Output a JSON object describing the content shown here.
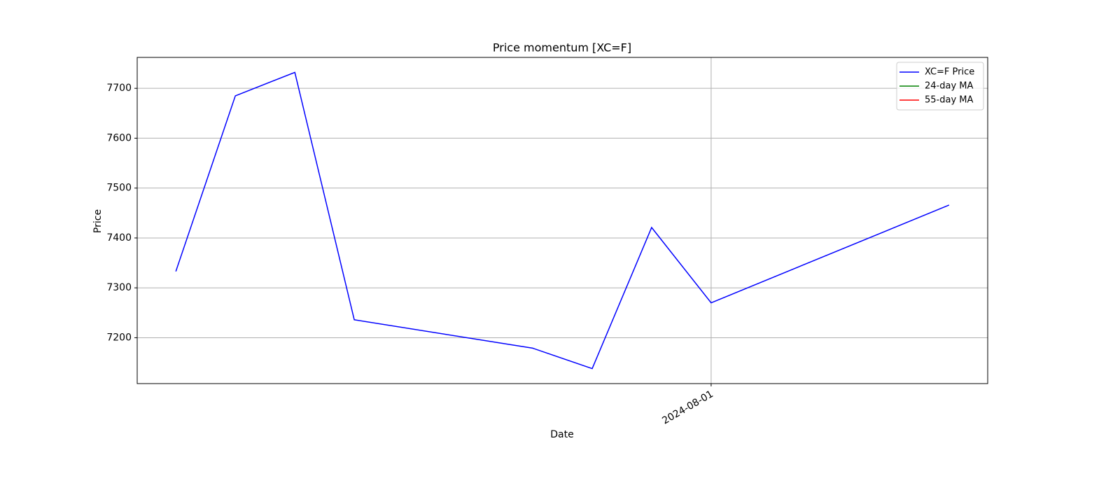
{
  "chart_data": {
    "type": "line",
    "title": "Price momentum [XC=F]",
    "xlabel": "Date",
    "ylabel": "Price",
    "x": [
      "2024-07-23",
      "2024-07-24",
      "2024-07-25",
      "2024-07-26",
      "2024-07-29",
      "2024-07-30",
      "2024-07-31",
      "2024-08-01",
      "2024-08-05"
    ],
    "series": [
      {
        "name": "XC=F Price",
        "color": "#0000ff",
        "values": [
          7333,
          7685,
          7732,
          7236,
          7179,
          7138,
          7421,
          7270,
          7466
        ]
      },
      {
        "name": "24-day MA",
        "color": "#008000",
        "values": [
          null,
          null,
          null,
          null,
          null,
          null,
          null,
          null,
          null
        ]
      },
      {
        "name": "55-day MA",
        "color": "#ff0000",
        "values": [
          null,
          null,
          null,
          null,
          null,
          null,
          null,
          null,
          null
        ]
      }
    ],
    "xlim": [
      "2024-07-22T08:24:00Z",
      "2024-08-05T15:36:00Z"
    ],
    "xticks": [
      "2024-08-01"
    ],
    "ylim": [
      7108,
      7762
    ],
    "yticks": [
      7200,
      7300,
      7400,
      7500,
      7600,
      7700
    ],
    "grid": true,
    "legend": "upper right"
  }
}
